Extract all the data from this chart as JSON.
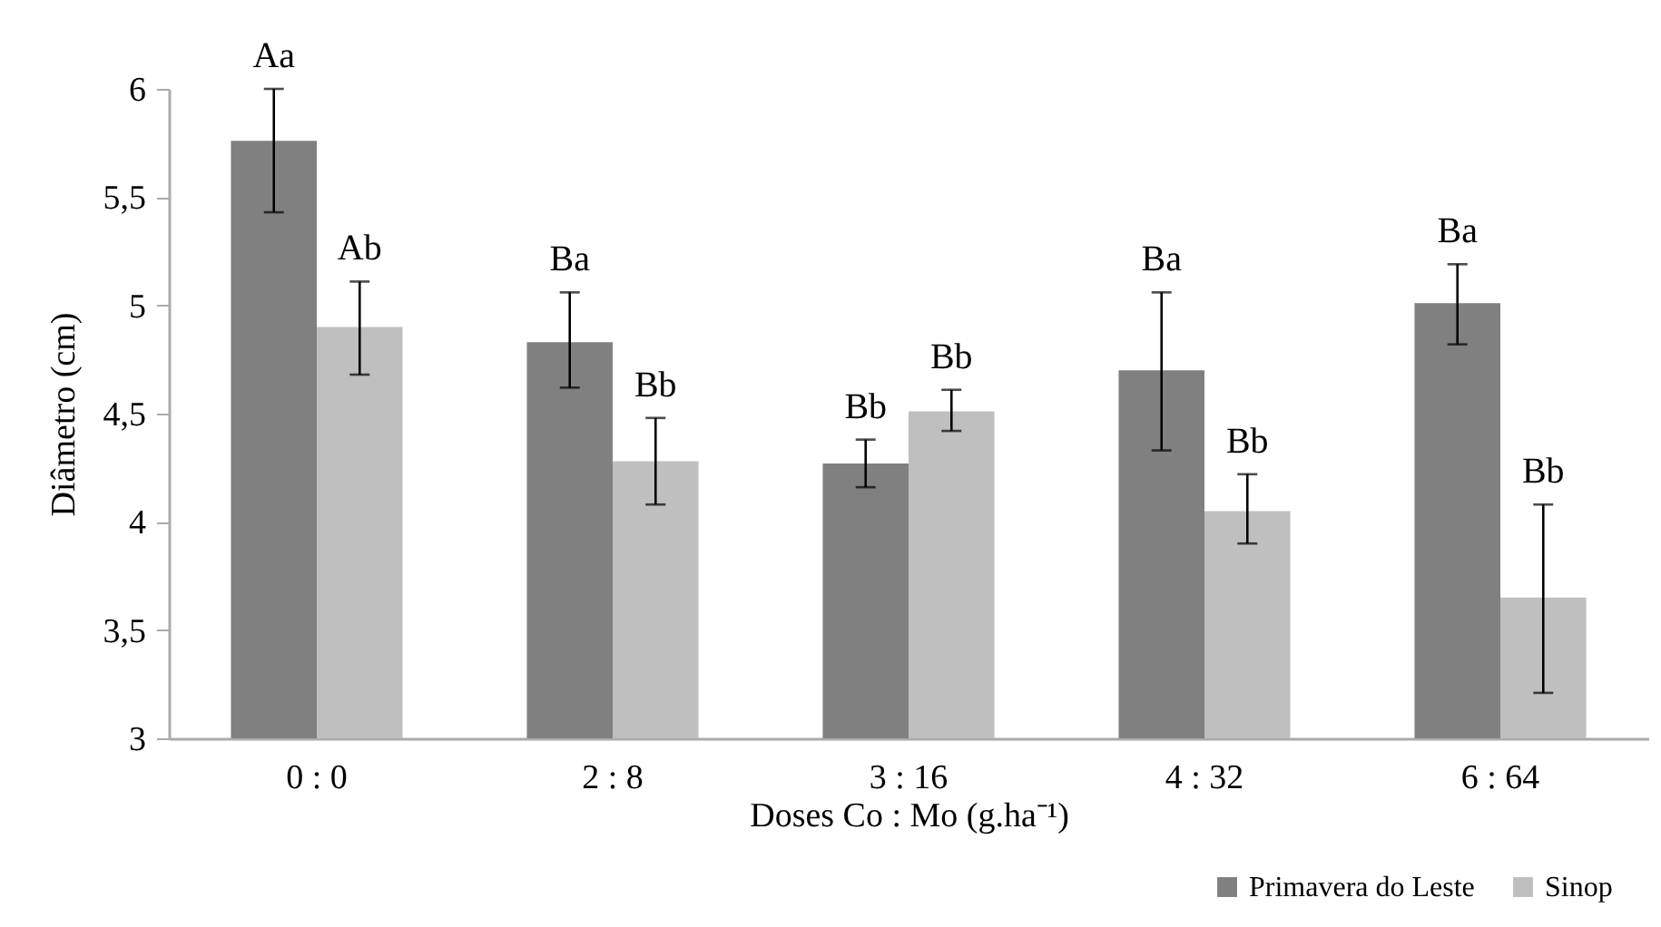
{
  "chart_data": {
    "type": "bar",
    "xlabel": "Doses Co : Mo (g.ha⁻¹)",
    "ylabel": "Diâmetro (cm)",
    "categories": [
      "0 : 0",
      "2 : 8",
      "3 : 16",
      "4 : 32",
      "6 : 64"
    ],
    "series": [
      {
        "name": "Primavera do Leste",
        "color": "#808080",
        "values": [
          5.76,
          4.83,
          4.27,
          4.7,
          5.01
        ],
        "errors": [
          [
            5.43,
            6.0
          ],
          [
            4.62,
            5.06
          ],
          [
            4.16,
            4.38
          ],
          [
            4.33,
            5.06
          ],
          [
            4.82,
            5.19
          ]
        ],
        "value_labels": [
          "Aa",
          "Ba",
          "Bb",
          "Ba",
          "Ba"
        ]
      },
      {
        "name": "Sinop",
        "color": "#bfbfbf",
        "values": [
          4.9,
          4.28,
          4.51,
          4.05,
          3.65
        ],
        "errors": [
          [
            4.68,
            5.11
          ],
          [
            4.08,
            4.48
          ],
          [
            4.42,
            4.61
          ],
          [
            3.9,
            4.22
          ],
          [
            3.21,
            4.08
          ]
        ],
        "value_labels": [
          "Ab",
          "Bb",
          "Bb",
          "Bb",
          "Bb"
        ]
      }
    ],
    "ylim": [
      3,
      6
    ],
    "yticks": [
      {
        "value": 3,
        "label": "3"
      },
      {
        "value": 3.5,
        "label": "3,5"
      },
      {
        "value": 4,
        "label": "4"
      },
      {
        "value": 4.5,
        "label": "4,5"
      },
      {
        "value": 5,
        "label": "5"
      },
      {
        "value": 5.5,
        "label": "5,5"
      },
      {
        "value": 6,
        "label": "6"
      }
    ],
    "legend": "bottom right"
  }
}
